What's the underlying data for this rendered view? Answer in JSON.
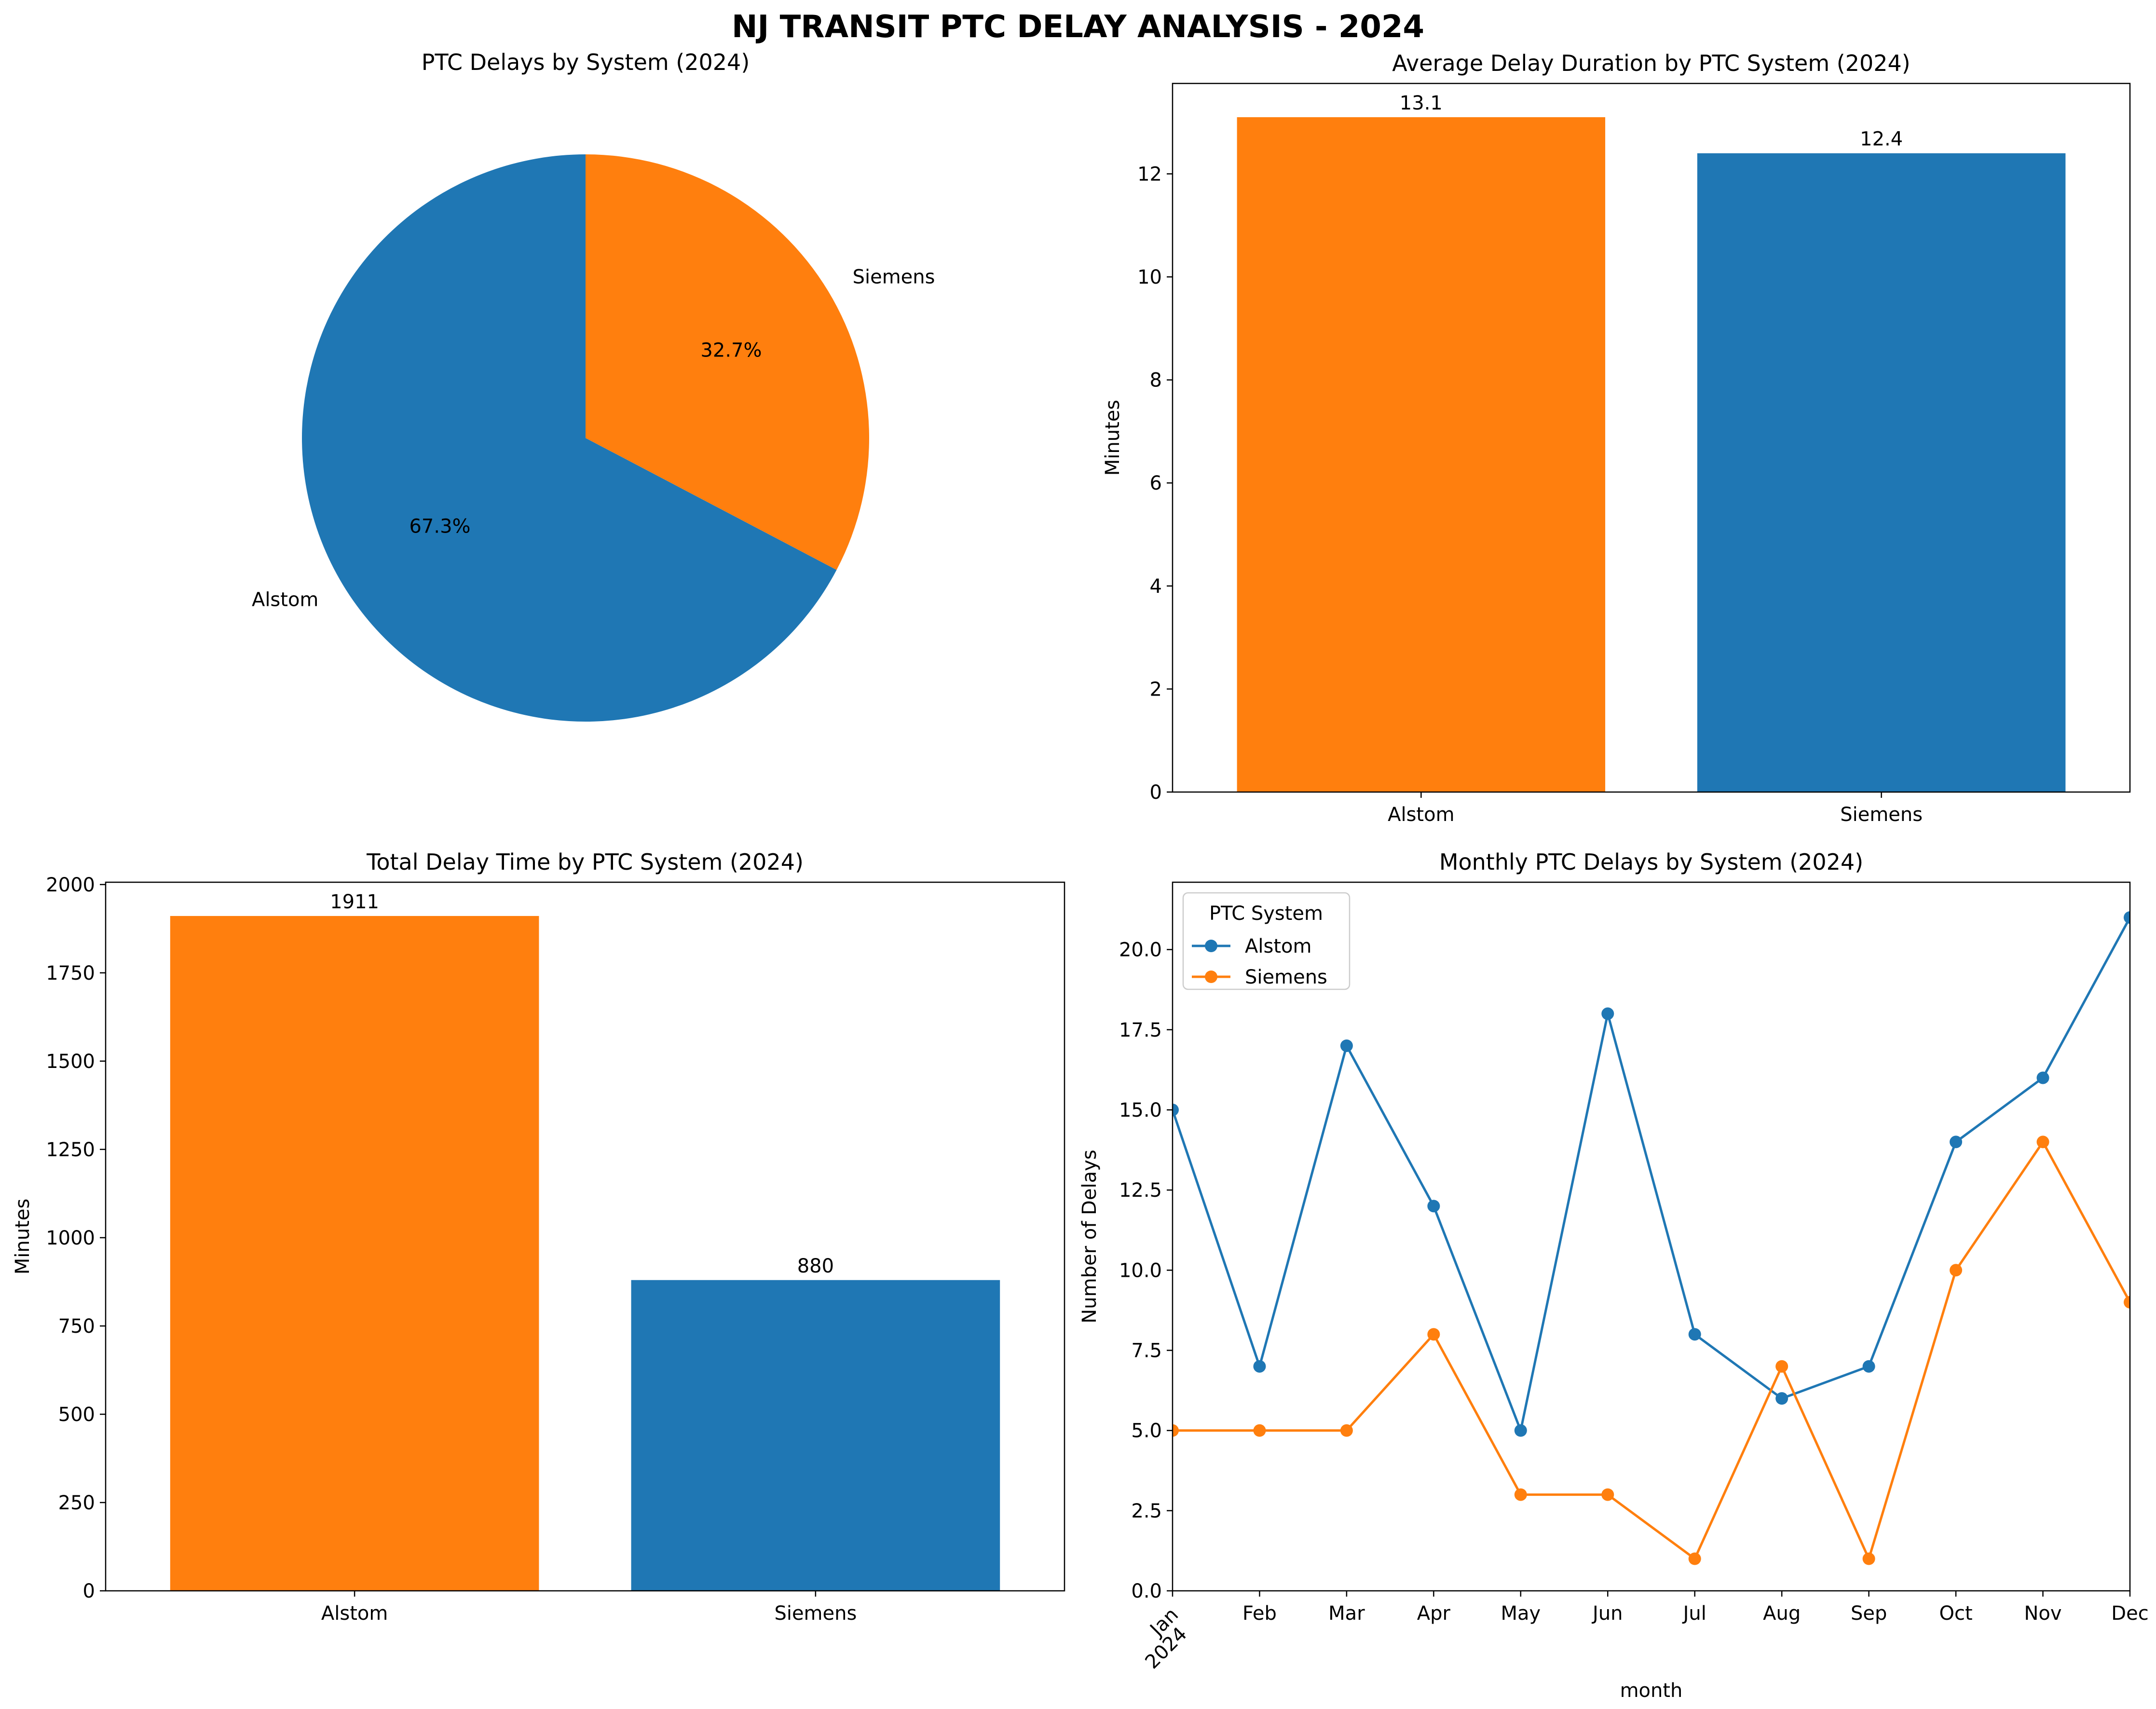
{
  "figure_title": "NJ TRANSIT PTC DELAY ANALYSIS - 2024",
  "colors": {
    "alstom": "#1f77b4",
    "siemens": "#ff7f0e",
    "axis": "#000000"
  },
  "chart_data": [
    {
      "type": "pie",
      "title": "PTC Delays by System (2024)",
      "labels": [
        "Alstom",
        "Siemens"
      ],
      "values": [
        67.3,
        32.7
      ],
      "pct_labels": [
        "67.3%",
        "32.7%"
      ],
      "colors": [
        "#1f77b4",
        "#ff7f0e"
      ]
    },
    {
      "type": "bar",
      "title": "Average Delay Duration by PTC System (2024)",
      "categories": [
        "Alstom",
        "Siemens"
      ],
      "values": [
        13.1,
        12.4
      ],
      "data_labels": [
        "13.1",
        "12.4"
      ],
      "colors": [
        "#ff7f0e",
        "#1f77b4"
      ],
      "xlabel": "",
      "ylabel": "Minutes",
      "ylim": [
        0,
        13.755
      ],
      "yticks": [
        0,
        2,
        4,
        6,
        8,
        10,
        12
      ],
      "ytick_labels": [
        "0",
        "2",
        "4",
        "6",
        "8",
        "10",
        "12"
      ]
    },
    {
      "type": "bar",
      "title": "Total Delay Time by PTC System (2024)",
      "categories": [
        "Alstom",
        "Siemens"
      ],
      "values": [
        1911,
        880
      ],
      "data_labels": [
        "1911",
        "880"
      ],
      "colors": [
        "#ff7f0e",
        "#1f77b4"
      ],
      "xlabel": "",
      "ylabel": "Minutes",
      "ylim": [
        0,
        2006.55
      ],
      "yticks": [
        0,
        250,
        500,
        750,
        1000,
        1250,
        1500,
        1750,
        2000
      ],
      "ytick_labels": [
        "0",
        "250",
        "500",
        "750",
        "1000",
        "1250",
        "1500",
        "1750",
        "2000"
      ]
    },
    {
      "type": "line",
      "title": "Monthly PTC Delays by System (2024)",
      "categories": [
        "Jan",
        "Feb",
        "Mar",
        "Apr",
        "May",
        "Jun",
        "Jul",
        "Aug",
        "Sep",
        "Oct",
        "Nov",
        "Dec"
      ],
      "year_label": "2024",
      "series": [
        {
          "name": "Alstom",
          "color": "#1f77b4",
          "values": [
            15,
            7,
            17,
            12,
            5,
            18,
            8,
            6,
            7,
            14,
            16,
            21
          ]
        },
        {
          "name": "Siemens",
          "color": "#ff7f0e",
          "values": [
            5,
            5,
            5,
            8,
            3,
            3,
            1,
            7,
            1,
            10,
            14,
            9
          ]
        }
      ],
      "xlabel": "month",
      "ylabel": "Number of Delays",
      "ylim": [
        0,
        22.1
      ],
      "yticks": [
        0,
        2.5,
        5,
        7.5,
        10,
        12.5,
        15,
        17.5,
        20
      ],
      "ytick_labels": [
        "0.0",
        "2.5",
        "5.0",
        "7.5",
        "10.0",
        "12.5",
        "15.0",
        "17.5",
        "20.0"
      ],
      "legend_title": "PTC System",
      "legend_position": "upper-left",
      "grid": false
    }
  ]
}
